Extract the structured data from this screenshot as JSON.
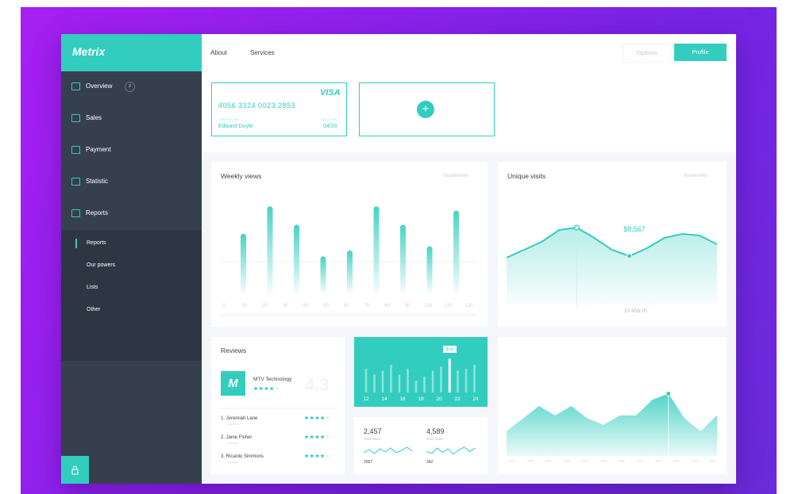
{
  "sidebar": {
    "logo": "Metrix",
    "nav": [
      {
        "label": "Overview",
        "badge": "2"
      },
      {
        "label": "Sales"
      },
      {
        "label": "Payment"
      },
      {
        "label": "Statistic"
      },
      {
        "label": "Reports"
      }
    ],
    "subnav": [
      "Reports",
      "Our powers",
      "Lists",
      "Other"
    ]
  },
  "topbar": {
    "links": [
      "About",
      "Services"
    ],
    "options": "Options",
    "profile": "Profile"
  },
  "card": {
    "brand": "VISA",
    "number": "4056 3324 0023 2853",
    "holder_label": "CARD HOLDER",
    "holder": "Edward Doyle",
    "valid_label": "VALID THRU",
    "valid": "04/20"
  },
  "add_card": "+",
  "weekly_views": {
    "title": "Weekly views",
    "period": "September",
    "axis_labels": [
      "0",
      "10",
      "20",
      "30",
      "40",
      "50",
      "60",
      "70",
      "80",
      "90",
      "100",
      "110",
      "120"
    ],
    "values": [
      62,
      95,
      73,
      35,
      42,
      95,
      73,
      47,
      90
    ],
    "ylim": [
      0,
      100
    ]
  },
  "unique_visits": {
    "title": "Unique visits",
    "period": "November",
    "values": [
      60,
      70,
      80,
      95,
      98,
      85,
      70,
      62,
      72,
      85,
      90,
      88,
      77
    ],
    "ylim": [
      0,
      150
    ],
    "highlight_label": "$8,567",
    "date_label": "12 March"
  },
  "reviews": {
    "title": "Reviews",
    "company": {
      "name": "MTV Technology",
      "logo": "M",
      "rating": 4,
      "score": "4.3"
    },
    "items": [
      {
        "name": "1. Jeremiah Lane",
        "rating": 4
      },
      {
        "name": "2. Janie Fisher",
        "rating": 4
      },
      {
        "name": "3. Ricardo Simmons",
        "rating": 4
      }
    ]
  },
  "hourly": {
    "axis_labels": [
      "12",
      "14",
      "16",
      "18",
      "20",
      "22",
      "24"
    ],
    "values": [
      60,
      45,
      55,
      70,
      45,
      60,
      30,
      40,
      55,
      65,
      85,
      55,
      60,
      70
    ],
    "ylim": [
      0,
      100
    ],
    "tooltip": "$76"
  },
  "stats": [
    {
      "value": "2,457",
      "label": "Total sales",
      "sub": "2567",
      "spark": [
        5,
        9,
        4,
        10,
        6,
        11,
        5,
        8,
        12,
        7
      ]
    },
    {
      "value": "4,589",
      "label": "Total visits",
      "sub": "342",
      "spark": [
        6,
        4,
        10,
        5,
        9,
        3,
        8,
        11,
        6,
        10
      ]
    }
  ],
  "traffic": {
    "values": [
      40,
      60,
      80,
      65,
      80,
      60,
      50,
      65,
      65,
      90,
      100,
      60,
      40,
      65
    ],
    "ylim": [
      0,
      140
    ]
  }
}
